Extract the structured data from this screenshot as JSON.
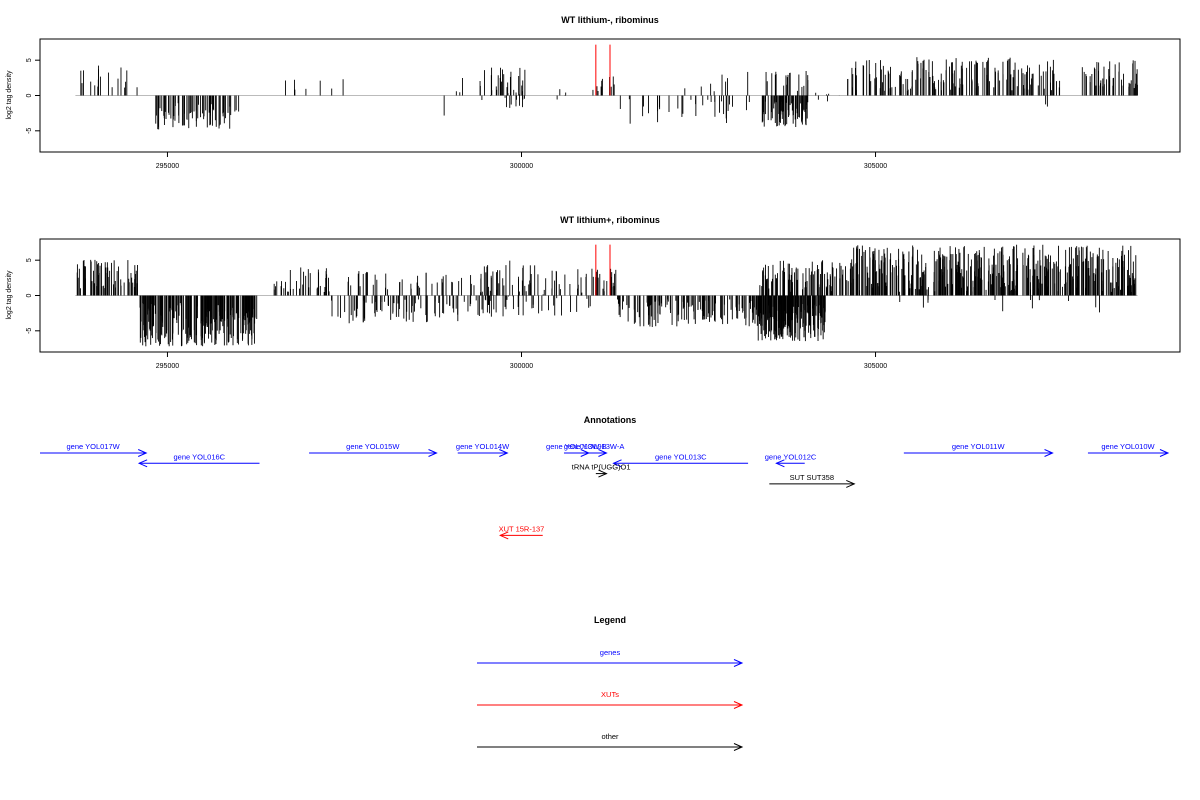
{
  "chart_data": [
    {
      "type": "bar",
      "title": "WT lithium-, ribominus",
      "xlabel": "",
      "ylabel": "log2 tag density",
      "xlim": [
        293200,
        309300
      ],
      "ylim": [
        -8,
        8
      ],
      "xticks": [
        295000,
        300000,
        305000
      ],
      "yticks": [
        -5,
        0,
        5
      ],
      "seed": 11,
      "baseline_range": [
        293700,
        308700
      ],
      "highlight_color": "#ff0000",
      "highlights": [
        {
          "x": 301050,
          "y": 7.2
        },
        {
          "x": 301250,
          "y": 7.2
        }
      ],
      "segments": [
        {
          "start": 293700,
          "end": 294600,
          "count": 18,
          "min": 1.0,
          "max": 4.5
        },
        {
          "start": 294800,
          "end": 295900,
          "count": 75,
          "min": -4.8,
          "max": -1.0
        },
        {
          "start": 295950,
          "end": 296050,
          "count": 3,
          "min": -2.5,
          "max": -1.0
        },
        {
          "start": 296450,
          "end": 297500,
          "count": 7,
          "min": 0.5,
          "max": 3.0
        },
        {
          "start": 298900,
          "end": 299250,
          "count": 4,
          "min": -3.0,
          "max": 3.0
        },
        {
          "start": 299400,
          "end": 300050,
          "count": 40,
          "min": -2.0,
          "max": 4.0
        },
        {
          "start": 300300,
          "end": 300650,
          "count": 4,
          "min": -1.0,
          "max": 2.0
        },
        {
          "start": 301000,
          "end": 301350,
          "count": 10,
          "min": 0.5,
          "max": 3.0
        },
        {
          "start": 301350,
          "end": 303300,
          "count": 32,
          "min": -4.0,
          "max": -0.5
        },
        {
          "start": 302300,
          "end": 303300,
          "count": 8,
          "min": 0.5,
          "max": 3.5
        },
        {
          "start": 303400,
          "end": 304050,
          "count": 75,
          "min": -4.5,
          "max": -0.8
        },
        {
          "start": 303400,
          "end": 304050,
          "count": 20,
          "min": 0.5,
          "max": 3.5
        },
        {
          "start": 304050,
          "end": 304600,
          "count": 6,
          "min": -2.0,
          "max": 3.5
        },
        {
          "start": 304600,
          "end": 307600,
          "count": 160,
          "min": 0.5,
          "max": 5.5
        },
        {
          "start": 307350,
          "end": 307500,
          "count": 2,
          "min": -2.5,
          "max": -1.0
        },
        {
          "start": 307900,
          "end": 308700,
          "count": 50,
          "min": 1.0,
          "max": 5.0
        }
      ]
    },
    {
      "type": "bar",
      "title": "WT lithium+, ribominus",
      "xlabel": "",
      "ylabel": "log2 tag density",
      "xlim": [
        293200,
        309300
      ],
      "ylim": [
        -8,
        8
      ],
      "xticks": [
        295000,
        300000,
        305000
      ],
      "yticks": [
        -5,
        0,
        5
      ],
      "seed": 29,
      "baseline_range": [
        293700,
        308700
      ],
      "highlight_color": "#ff0000",
      "highlights": [
        {
          "x": 301050,
          "y": 7.2
        },
        {
          "x": 301250,
          "y": 7.2
        }
      ],
      "segments": [
        {
          "start": 293700,
          "end": 294600,
          "count": 60,
          "min": 1.0,
          "max": 5.2
        },
        {
          "start": 294600,
          "end": 296300,
          "count": 260,
          "min": -7.2,
          "max": -1.0
        },
        {
          "start": 296500,
          "end": 297300,
          "count": 35,
          "min": 0.5,
          "max": 4.0
        },
        {
          "start": 297300,
          "end": 299400,
          "count": 80,
          "min": -4.0,
          "max": -0.5
        },
        {
          "start": 297500,
          "end": 299400,
          "count": 40,
          "min": 0.5,
          "max": 3.5
        },
        {
          "start": 299400,
          "end": 300300,
          "count": 70,
          "min": -3.0,
          "max": 5.0
        },
        {
          "start": 300300,
          "end": 301000,
          "count": 30,
          "min": -3.0,
          "max": 4.0
        },
        {
          "start": 301000,
          "end": 301350,
          "count": 20,
          "min": 0.5,
          "max": 4.0
        },
        {
          "start": 301350,
          "end": 303300,
          "count": 130,
          "min": -4.5,
          "max": -0.5
        },
        {
          "start": 303300,
          "end": 304300,
          "count": 200,
          "min": -6.5,
          "max": -1.0
        },
        {
          "start": 303300,
          "end": 304600,
          "count": 90,
          "min": 0.5,
          "max": 5.0
        },
        {
          "start": 304600,
          "end": 308700,
          "count": 420,
          "min": 0.5,
          "max": 7.2
        },
        {
          "start": 304600,
          "end": 308700,
          "count": 12,
          "min": -2.5,
          "max": -0.5
        }
      ]
    }
  ],
  "annotations": {
    "title": "Annotations",
    "items": [
      {
        "label": "gene YOL017W",
        "color": "#0000ff",
        "dir": "right",
        "start": 293200,
        "end": 294700,
        "row": 0
      },
      {
        "label": "gene YOL016C",
        "color": "#0000ff",
        "dir": "left",
        "start": 294600,
        "end": 296300,
        "row": 1
      },
      {
        "label": "gene YOL015W",
        "color": "#0000ff",
        "dir": "right",
        "start": 297000,
        "end": 298800,
        "row": 0
      },
      {
        "label": "gene YOL014W",
        "color": "#0000ff",
        "dir": "right",
        "start": 299100,
        "end": 299800,
        "row": 0
      },
      {
        "label": "gene YOL013W-B",
        "color": "#0000ff",
        "dir": "right",
        "start": 300600,
        "end": 300950,
        "row": 0
      },
      {
        "label": "gene YOL013W-A",
        "color": "#0000ff",
        "dir": "right",
        "start": 300850,
        "end": 301200,
        "row": 0
      },
      {
        "label": "gene YOL013C",
        "color": "#0000ff",
        "dir": "left",
        "start": 301300,
        "end": 303200,
        "row": 1
      },
      {
        "label": "gene YOL012C",
        "color": "#0000ff",
        "dir": "left",
        "start": 303600,
        "end": 304000,
        "row": 1
      },
      {
        "label": "gene YOL011W",
        "color": "#0000ff",
        "dir": "right",
        "start": 305400,
        "end": 307500,
        "row": 0
      },
      {
        "label": "gene YOL010W",
        "color": "#0000ff",
        "dir": "right",
        "start": 308000,
        "end": 309300,
        "row": 0
      },
      {
        "label": "tRNA tP(UGG)O1",
        "color": "#000000",
        "dir": "right",
        "start": 301050,
        "end": 301200,
        "row": 2
      },
      {
        "label": "SUT SUT358",
        "color": "#000000",
        "dir": "right",
        "start": 303500,
        "end": 304700,
        "row": 3
      },
      {
        "label": "XUT 15R-137",
        "color": "#ff0000",
        "dir": "left",
        "start": 299700,
        "end": 300300,
        "row": 8
      }
    ]
  },
  "legend": {
    "title": "Legend",
    "items": [
      {
        "label": "genes",
        "color": "#0000ff"
      },
      {
        "label": "XUTs",
        "color": "#ff0000"
      },
      {
        "label": "other",
        "color": "#000000"
      }
    ]
  }
}
